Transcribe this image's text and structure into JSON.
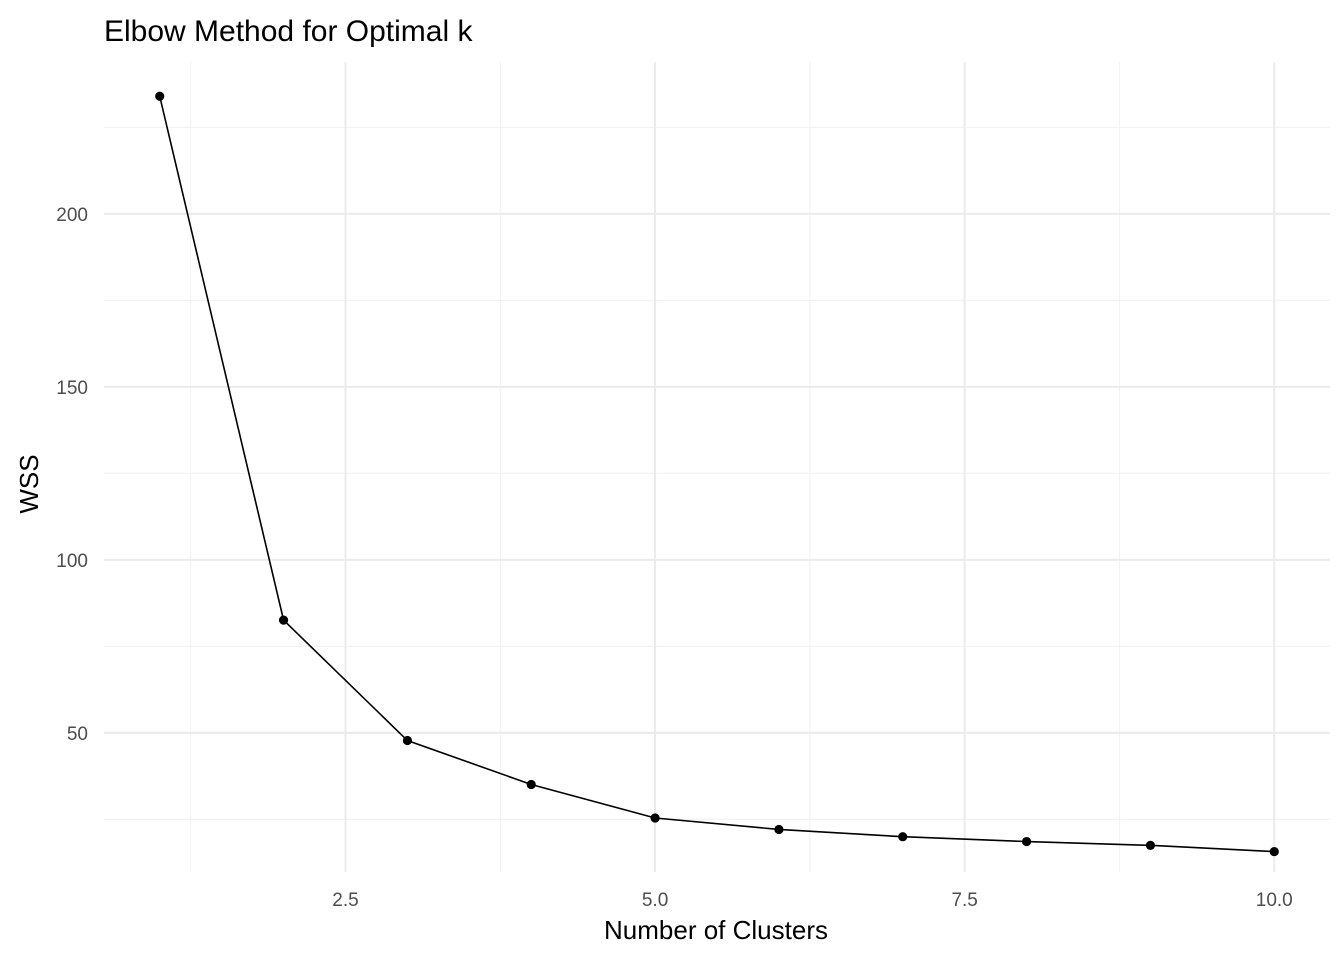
{
  "chart_data": {
    "type": "line",
    "title": "Elbow Method for Optimal k",
    "xlabel": "Number of Clusters",
    "ylabel": "WSS",
    "x": [
      1,
      2,
      3,
      4,
      5,
      6,
      7,
      8,
      9,
      10
    ],
    "series": [
      {
        "values": [
          234.0,
          82.6,
          47.8,
          35.1,
          25.4,
          22.1,
          20.0,
          18.6,
          17.5,
          15.7
        ]
      }
    ],
    "xlim": [
      0.55,
      10.45
    ],
    "ylim": [
      9.8,
      243.9
    ],
    "x_ticks": [
      2.5,
      5.0,
      7.5,
      10.0
    ],
    "x_tick_labels": [
      "2.5",
      "5.0",
      "7.5",
      "10.0"
    ],
    "y_ticks": [
      50,
      100,
      150,
      200
    ],
    "y_tick_labels": [
      "50",
      "100",
      "150",
      "200"
    ],
    "grid": true,
    "legend": false,
    "colors": {
      "line": "#000000",
      "points": "#000000",
      "grid": "#ebebeb"
    }
  }
}
